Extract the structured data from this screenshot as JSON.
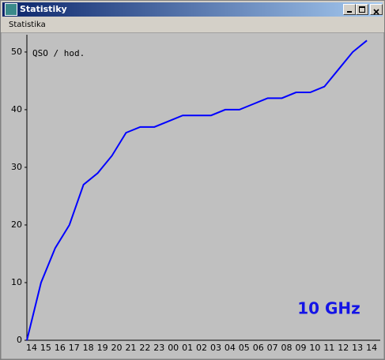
{
  "window": {
    "title": "Statistiky",
    "menu": [
      "Statistika"
    ]
  },
  "chart_data": {
    "type": "line",
    "annotations": [
      "QSO / hod.",
      "10 GHz"
    ],
    "categories": [
      "14",
      "15",
      "16",
      "17",
      "18",
      "19",
      "20",
      "21",
      "22",
      "23",
      "00",
      "01",
      "02",
      "03",
      "04",
      "05",
      "06",
      "07",
      "08",
      "09",
      "10",
      "11",
      "12",
      "13",
      "14"
    ],
    "series": [
      {
        "color": "#0000ff",
        "values": [
          0,
          10,
          16,
          20,
          27,
          29,
          32,
          36,
          37,
          37,
          38,
          39,
          39,
          39,
          40,
          40,
          41,
          42,
          42,
          43,
          43,
          44,
          47,
          50,
          52
        ]
      }
    ],
    "ylim": [
      0,
      53
    ],
    "yticks": [
      0,
      10,
      20,
      30,
      40,
      50
    ]
  }
}
